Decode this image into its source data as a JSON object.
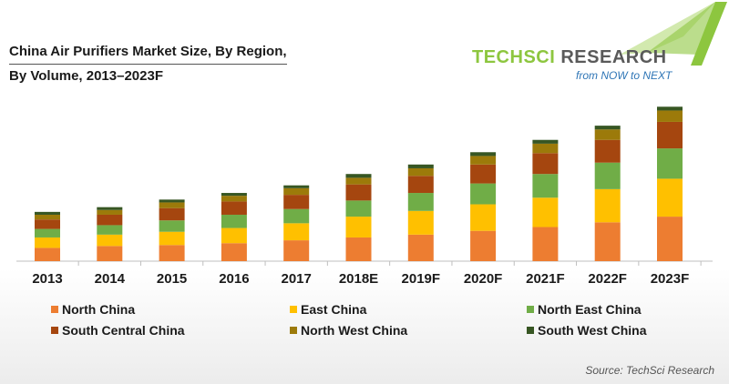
{
  "title": {
    "line1": "China Air Purifiers Market Size, By Region,",
    "line2": "By Volume, 2013–2023F"
  },
  "logo": {
    "name_part1": "TECHSCI",
    "name_part2": " RESEARCH",
    "tagline": "from NOW to NEXT"
  },
  "source": "Source: TechSci Research",
  "chart_data": {
    "type": "bar",
    "stacked": true,
    "categories": [
      "2013",
      "2014",
      "2015",
      "2016",
      "2017",
      "2018E",
      "2019F",
      "2020F",
      "2021F",
      "2022F",
      "2023F"
    ],
    "y_unit": "relative",
    "ylim": [
      0,
      170
    ],
    "series": [
      {
        "name": "North China",
        "color": "#ed7d31",
        "values": [
          14,
          16,
          17,
          19,
          22,
          25,
          28,
          32,
          36,
          41,
          47
        ]
      },
      {
        "name": "East China",
        "color": "#ffc000",
        "values": [
          11,
          12,
          14,
          16,
          18,
          22,
          25,
          28,
          31,
          35,
          40
        ]
      },
      {
        "name": "North East China",
        "color": "#70ad47",
        "values": [
          9,
          10,
          12,
          14,
          15,
          17,
          19,
          22,
          25,
          28,
          32
        ]
      },
      {
        "name": "South Central China",
        "color": "#a5460f",
        "values": [
          10,
          11,
          13,
          14,
          15,
          17,
          18,
          20,
          22,
          24,
          28
        ]
      },
      {
        "name": "North West China",
        "color": "#9c7a0a",
        "values": [
          5,
          5,
          6,
          6,
          7,
          7,
          8,
          9,
          10,
          11,
          12
        ]
      },
      {
        "name": "South West China",
        "color": "#375623",
        "values": [
          3,
          3,
          3,
          3,
          3,
          4,
          4,
          4,
          4,
          4,
          4
        ]
      }
    ]
  }
}
